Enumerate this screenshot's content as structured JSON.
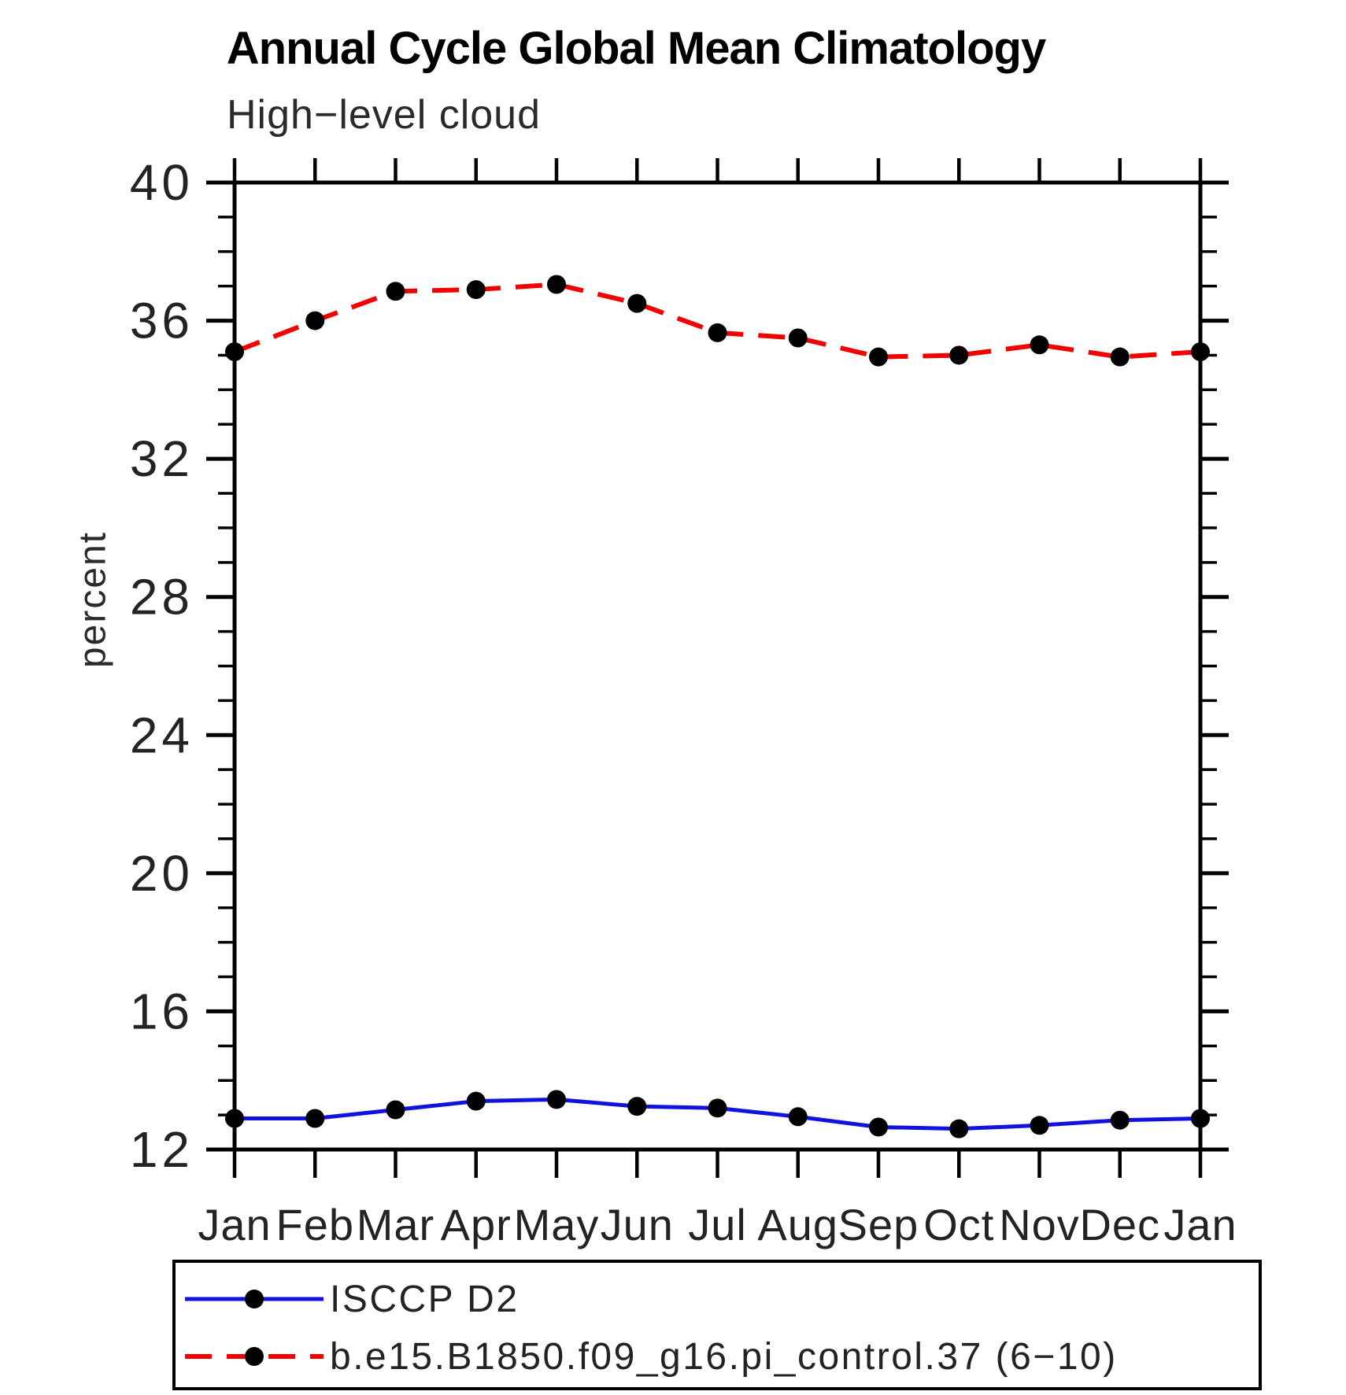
{
  "page": {
    "background": "#ffffff"
  },
  "colors": {
    "axis": "#000000",
    "tick_text": "#232323",
    "title_text": "#000000"
  },
  "chart_data": {
    "type": "line",
    "title": "Annual Cycle Global Mean Climatology",
    "subtitle": "High−level cloud",
    "ylabel": "percent",
    "xlabel": "",
    "x_categories": [
      "Jan",
      "Feb",
      "Mar",
      "Apr",
      "May",
      "Jun",
      "Jul",
      "Aug",
      "Sep",
      "Oct",
      "Nov",
      "Dec",
      "Jan"
    ],
    "ylim": [
      12,
      40
    ],
    "y_major_ticks": [
      12,
      16,
      20,
      24,
      28,
      32,
      36,
      40
    ],
    "y_minor_step": 1,
    "grid": "off",
    "legend_position": "bottom-box",
    "series": [
      {
        "name": "ISCCP D2",
        "color": "#1111e0",
        "line_style": "solid",
        "marker": "filled-circle",
        "marker_color": "#000000",
        "values": [
          12.9,
          12.9,
          13.15,
          13.4,
          13.45,
          13.25,
          13.2,
          12.95,
          12.65,
          12.6,
          12.7,
          12.85,
          12.9
        ]
      },
      {
        "name": "b.e15.B1850.f09_g16.pi_control.37 (6−10)",
        "color": "#f40000",
        "line_style": "dashed",
        "marker": "filled-circle",
        "marker_color": "#000000",
        "values": [
          35.1,
          36.0,
          36.85,
          36.9,
          37.05,
          36.5,
          35.65,
          35.5,
          34.95,
          35.0,
          35.3,
          34.95,
          35.1
        ]
      }
    ]
  }
}
